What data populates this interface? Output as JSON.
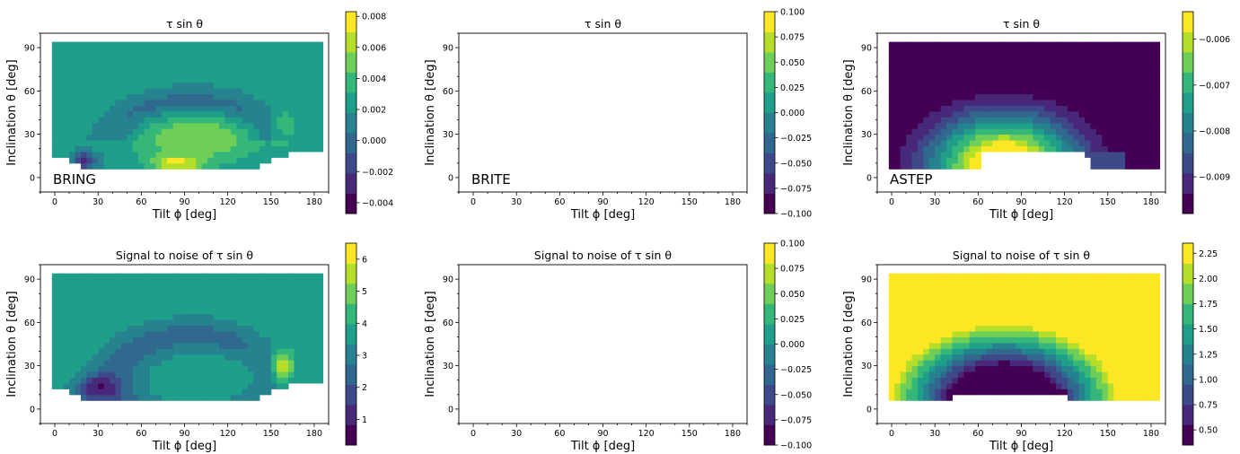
{
  "chart_data": [
    {
      "type": "heatmap",
      "title": "τ sin θ",
      "label": "BRING",
      "xlabel": "Tilt ϕ [deg]",
      "ylabel": "Inclination θ [deg]",
      "xticks": [
        0,
        30,
        60,
        90,
        120,
        150,
        180
      ],
      "yticks": [
        0,
        30,
        60,
        90
      ],
      "xlim": [
        -10,
        190
      ],
      "ylim": [
        -10,
        100
      ],
      "colorbar": {
        "min": -0.0047,
        "max": 0.0083,
        "ticks": [
          -0.004,
          -0.002,
          0.0,
          0.002,
          0.004,
          0.006,
          0.008
        ],
        "ticklabels": [
          "−0.004",
          "−0.002",
          "0.000",
          "0.002",
          "0.004",
          "0.006",
          "0.008"
        ]
      },
      "field": "bring_tau"
    },
    {
      "type": "heatmap",
      "title": "τ sin θ",
      "label": "BRITE",
      "xlabel": "Tilt ϕ [deg]",
      "ylabel": "Inclination θ [deg]",
      "xticks": [
        0,
        30,
        60,
        90,
        120,
        150,
        180
      ],
      "yticks": [
        0,
        30,
        60,
        90
      ],
      "xlim": [
        -10,
        190
      ],
      "ylim": [
        -10,
        100
      ],
      "colorbar": {
        "min": -0.1,
        "max": 0.1,
        "ticks": [
          -0.1,
          -0.075,
          -0.05,
          -0.025,
          0,
          0.025,
          0.05,
          0.075,
          0.1
        ],
        "ticklabels": [
          "−0.100",
          "−0.075",
          "−0.050",
          "−0.025",
          "0.000",
          "0.025",
          "0.050",
          "0.075",
          "0.100"
        ]
      },
      "field": "empty"
    },
    {
      "type": "heatmap",
      "title": "τ sin θ",
      "label": "ASTEP",
      "xlabel": "Tilt ϕ [deg]",
      "ylabel": "Inclination θ [deg]",
      "xticks": [
        0,
        30,
        60,
        90,
        120,
        150,
        180
      ],
      "yticks": [
        0,
        30,
        60,
        90
      ],
      "xlim": [
        -10,
        190
      ],
      "ylim": [
        -10,
        100
      ],
      "colorbar": {
        "min": -0.0098,
        "max": -0.0054,
        "ticks": [
          -0.009,
          -0.008,
          -0.007,
          -0.006
        ],
        "ticklabels": [
          "−0.009",
          "−0.008",
          "−0.007",
          "−0.006"
        ]
      },
      "field": "astep_tau"
    },
    {
      "type": "heatmap",
      "title": "Signal to noise of τ sin θ",
      "label": "",
      "xlabel": "Tilt ϕ [deg]",
      "ylabel": "Inclination θ [deg]",
      "xticks": [
        0,
        30,
        60,
        90,
        120,
        150,
        180
      ],
      "yticks": [
        0,
        30,
        60,
        90
      ],
      "xlim": [
        -10,
        190
      ],
      "ylim": [
        -10,
        100
      ],
      "colorbar": {
        "min": 0.2,
        "max": 6.5,
        "ticks": [
          1,
          2,
          3,
          4,
          5,
          6
        ],
        "ticklabels": [
          "1",
          "2",
          "3",
          "4",
          "5",
          "6"
        ]
      },
      "field": "bring_snr"
    },
    {
      "type": "heatmap",
      "title": "Signal to noise of τ sin θ",
      "label": "",
      "xlabel": "Tilt ϕ [deg]",
      "ylabel": "Inclination θ [deg]",
      "xticks": [
        0,
        30,
        60,
        90,
        120,
        150,
        180
      ],
      "yticks": [
        0,
        30,
        60,
        90
      ],
      "xlim": [
        -10,
        190
      ],
      "ylim": [
        -10,
        100
      ],
      "colorbar": {
        "min": -0.1,
        "max": 0.1,
        "ticks": [
          -0.1,
          -0.075,
          -0.05,
          -0.025,
          0,
          0.025,
          0.05,
          0.075,
          0.1
        ],
        "ticklabels": [
          "−0.100",
          "−0.075",
          "−0.050",
          "−0.025",
          "0.000",
          "0.025",
          "0.050",
          "0.075",
          "0.100"
        ]
      },
      "field": "empty"
    },
    {
      "type": "heatmap",
      "title": "Signal to noise of τ sin θ",
      "label": "",
      "xlabel": "Tilt ϕ [deg]",
      "ylabel": "Inclination θ [deg]",
      "xticks": [
        0,
        30,
        60,
        90,
        120,
        150,
        180
      ],
      "yticks": [
        0,
        30,
        60,
        90
      ],
      "xlim": [
        -10,
        190
      ],
      "ylim": [
        -10,
        100
      ],
      "colorbar": {
        "min": 0.35,
        "max": 2.35,
        "ticks": [
          0.5,
          0.75,
          1.0,
          1.25,
          1.5,
          1.75,
          2.0,
          2.25
        ],
        "ticklabels": [
          "0.50",
          "0.75",
          "1.00",
          "1.25",
          "1.50",
          "1.75",
          "2.00",
          "2.25"
        ]
      },
      "field": "astep_snr"
    }
  ],
  "colormap": [
    "#440154",
    "#482878",
    "#3e4989",
    "#31688e",
    "#26828e",
    "#1f9e89",
    "#35b779",
    "#6ece58",
    "#b5de2b",
    "#fde725"
  ]
}
